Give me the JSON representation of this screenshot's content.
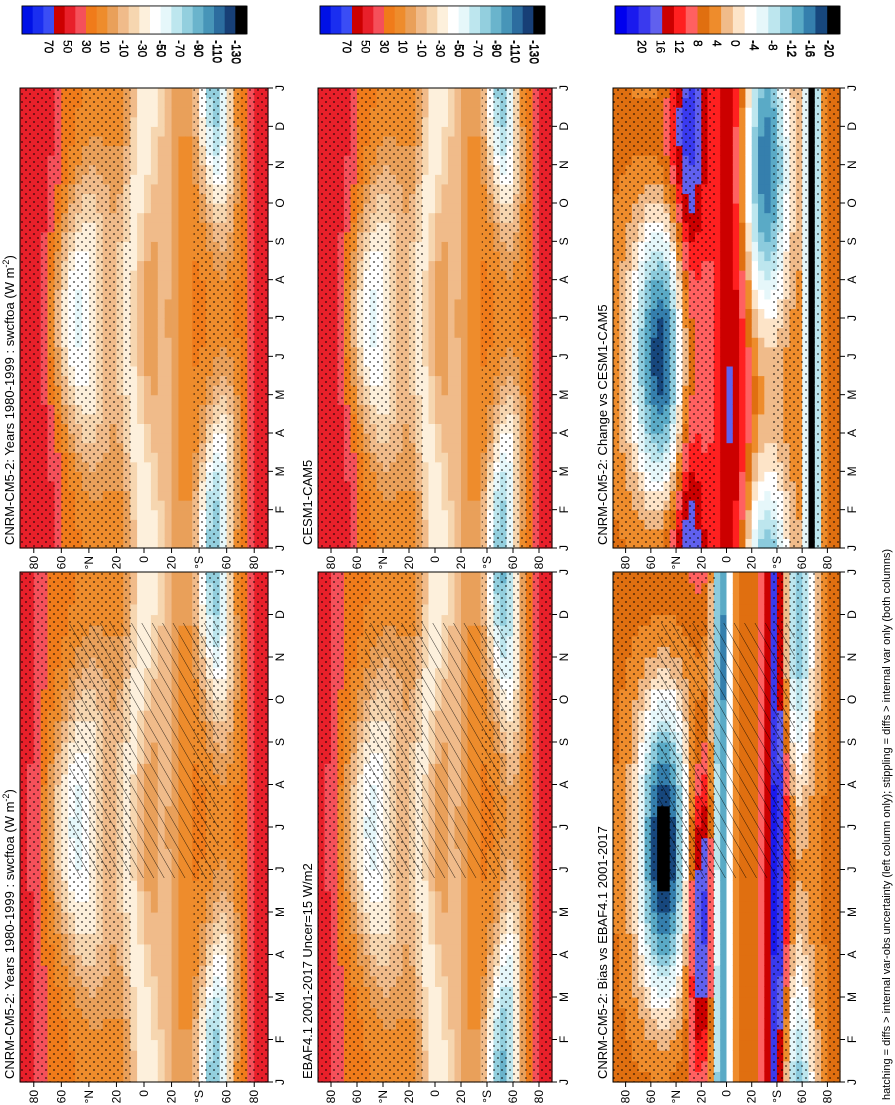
{
  "footnote": "hatching = diffs > internal var-obs uncertainty (left column only); stippling = diffs > internal var only (both columns)",
  "colorbar_levels": {
    "absolute": [
      "70",
      "50",
      "30",
      "10",
      "-10",
      "-30",
      "-50",
      "-70",
      "-90",
      "-110",
      "-130"
    ],
    "difference": [
      "20",
      "16",
      "12",
      "8",
      "4",
      "0",
      "-4",
      "-8",
      "-12",
      "-16",
      "-20"
    ]
  },
  "palettes": {
    "absolute": [
      "#0011e6",
      "#1a2ef0",
      "#3a4df5",
      "#cc0000",
      "#e8202a",
      "#f5505a",
      "#f07b1a",
      "#ee8c2c",
      "#e9a05a",
      "#f0bb8a",
      "#f6d6b0",
      "#fdf0dc",
      "#ffffff",
      "#e6f7fa",
      "#bde6ee",
      "#93cfde",
      "#6ab4cc",
      "#4795b8",
      "#2c6d9f",
      "#173f76",
      "#000000"
    ],
    "difference": [
      "#0000ee",
      "#1a1aee",
      "#3a3aee",
      "#6060ee",
      "#cc0000",
      "#ff2020",
      "#ff6060",
      "#e06f10",
      "#ee8c2c",
      "#f0bb8a",
      "#fde4c8",
      "#ffffff",
      "#e6f7fa",
      "#bde6ee",
      "#8ccbdd",
      "#5aaac6",
      "#357fad",
      "#17477d",
      "#000000"
    ]
  },
  "chart_data": [
    {
      "type": "heatmap",
      "title": "CNRM-CM5-2: Years 1980-1999 : swcftoa (W m",
      "title_sup": "-2",
      "title_end": ")",
      "x": [
        "J",
        "F",
        "M",
        "A",
        "M",
        "J",
        "J",
        "A",
        "S",
        "O",
        "N",
        "D",
        "J"
      ],
      "y": [
        "80",
        "60",
        "°N",
        "20",
        "0",
        "20",
        "°S",
        "60",
        "80"
      ],
      "colorbar": "absolute",
      "overlay": "hatching+stippling"
    },
    {
      "type": "heatmap",
      "title": "CNRM-CM5-2: Years 1980-1999 : swcftoa (W m",
      "title_sup": "-2",
      "title_end": ")",
      "x": [
        "J",
        "F",
        "M",
        "A",
        "M",
        "J",
        "J",
        "A",
        "S",
        "O",
        "N",
        "D",
        "J"
      ],
      "y": [
        "80",
        "60",
        "°N",
        "20",
        "0",
        "20",
        "°S",
        "60",
        "80"
      ],
      "colorbar": "absolute",
      "overlay": "stippling"
    },
    {
      "type": "heatmap",
      "title": "EBAF4.1 2001-2017 Uncer=15 W/m2",
      "x": [
        "J",
        "F",
        "M",
        "A",
        "M",
        "J",
        "J",
        "A",
        "S",
        "O",
        "N",
        "D",
        "J"
      ],
      "y": [
        "80",
        "60",
        "°N",
        "20",
        "0",
        "20",
        "°S",
        "60",
        "80"
      ],
      "colorbar": "absolute",
      "overlay": "hatching+stippling"
    },
    {
      "type": "heatmap",
      "title": "CESM1-CAM5",
      "x": [
        "J",
        "F",
        "M",
        "A",
        "M",
        "J",
        "J",
        "A",
        "S",
        "O",
        "N",
        "D",
        "J"
      ],
      "y": [
        "80",
        "60",
        "°N",
        "20",
        "0",
        "20",
        "°S",
        "60",
        "80"
      ],
      "colorbar": "absolute",
      "overlay": "stippling"
    },
    {
      "type": "heatmap",
      "title": "CNRM-CM5-2: Bias vs EBAF4.1 2001-2017",
      "x": [
        "J",
        "F",
        "M",
        "A",
        "M",
        "J",
        "J",
        "A",
        "S",
        "O",
        "N",
        "D",
        "J"
      ],
      "y": [
        "80",
        "60",
        "°N",
        "20",
        "0",
        "20",
        "°S",
        "60",
        "80"
      ],
      "colorbar": "difference",
      "overlay": "hatching+stippling"
    },
    {
      "type": "heatmap",
      "title": "CNRM-CM5-2: Change vs CESM1-CAM5",
      "x": [
        "J",
        "F",
        "M",
        "A",
        "M",
        "J",
        "J",
        "A",
        "S",
        "O",
        "N",
        "D",
        "J"
      ],
      "y": [
        "80",
        "60",
        "°N",
        "20",
        "0",
        "20",
        "°S",
        "60",
        "80"
      ],
      "colorbar": "difference",
      "overlay": "stippling"
    }
  ]
}
